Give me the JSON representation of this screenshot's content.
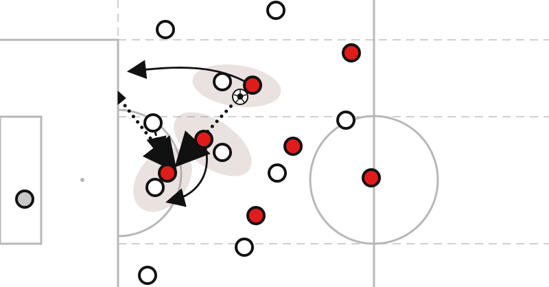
{
  "colors": {
    "background": "#ffffff",
    "pitch_line": "#b7b7b7",
    "lane_line": "#cfcfcf",
    "team_red": "#e01b1b",
    "team_white": "#ffffff",
    "goalkeeper": "#c8c8c8",
    "outline": "#111111",
    "pressure_zone": "#b89a9a",
    "arrow": "#111111"
  },
  "icons": {
    "ball": "football-icon",
    "player": "player-marker-icon",
    "pass_arrow": "dotted-arrow-icon",
    "run_arrow": "curved-arrow-icon"
  }
}
